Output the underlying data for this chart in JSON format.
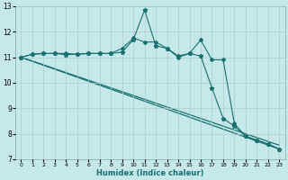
{
  "title": "",
  "xlabel": "Humidex (Indice chaleur)",
  "bg_color": "#c5e8e8",
  "grid_color": "#aacece",
  "line_color": "#1a7070",
  "xlim": [
    -0.5,
    23.5
  ],
  "ylim": [
    7,
    13
  ],
  "xticks": [
    0,
    1,
    2,
    3,
    4,
    5,
    6,
    7,
    8,
    9,
    10,
    11,
    12,
    13,
    14,
    15,
    16,
    17,
    18,
    19,
    20,
    21,
    22,
    23
  ],
  "yticks": [
    7,
    8,
    9,
    10,
    11,
    12,
    13
  ],
  "line1_x": [
    0,
    1,
    2,
    3,
    4,
    5,
    6,
    7,
    8,
    9,
    10,
    11,
    12,
    13,
    14,
    15,
    16,
    17,
    18,
    19,
    20,
    21,
    22,
    23
  ],
  "line1_y": [
    11.0,
    11.12,
    11.15,
    11.15,
    11.1,
    11.12,
    11.15,
    11.15,
    11.15,
    11.2,
    11.7,
    12.85,
    11.45,
    11.35,
    11.05,
    11.15,
    11.05,
    9.8,
    8.6,
    8.3,
    7.9,
    7.75,
    7.6,
    7.4
  ],
  "line2_x": [
    0,
    1,
    2,
    3,
    4,
    5,
    6,
    7,
    8,
    9,
    10,
    11,
    12,
    13,
    14,
    15,
    16,
    17,
    18,
    19,
    20,
    21,
    22,
    23
  ],
  "line2_y": [
    11.0,
    11.12,
    11.15,
    11.15,
    11.15,
    11.12,
    11.15,
    11.15,
    11.15,
    11.35,
    11.75,
    11.6,
    11.6,
    11.35,
    11.0,
    11.15,
    11.68,
    10.9,
    10.9,
    8.4,
    7.9,
    7.75,
    7.6,
    7.4
  ],
  "line3_x": [
    0,
    23
  ],
  "line3_y": [
    11.0,
    7.4
  ],
  "line4_x": [
    0,
    23
  ],
  "line4_y": [
    11.0,
    7.55
  ]
}
